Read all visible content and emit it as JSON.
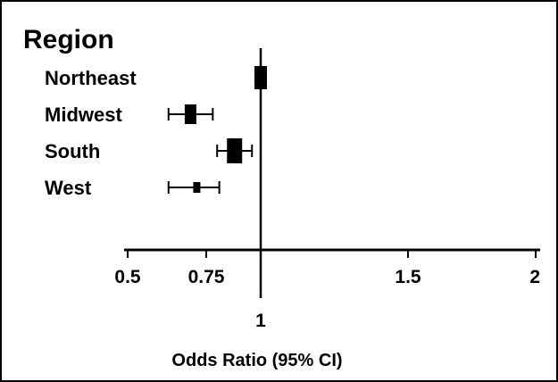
{
  "chart_data": {
    "type": "forest",
    "title": "Region",
    "xlabel": "Odds Ratio (95% CI)",
    "reference_line": 1,
    "x_ticks": [
      {
        "value": 0.5,
        "label": "0.5"
      },
      {
        "value": 0.75,
        "label": "0.75"
      },
      {
        "value": 1,
        "label": "1"
      },
      {
        "value": 1.5,
        "label": "1.5"
      },
      {
        "value": 2,
        "label": "2"
      }
    ],
    "xlim": [
      0.5,
      2
    ],
    "rows": [
      {
        "label": "Northeast",
        "or": 1.0,
        "ci_low": 1.0,
        "ci_high": 1.0,
        "reference": true
      },
      {
        "label": "Midwest",
        "or": 0.7,
        "ci_low": 0.63,
        "ci_high": 0.78
      },
      {
        "label": "South",
        "or": 0.88,
        "ci_low": 0.8,
        "ci_high": 0.96
      },
      {
        "label": "West",
        "or": 0.72,
        "ci_low": 0.63,
        "ci_high": 0.81
      }
    ]
  }
}
